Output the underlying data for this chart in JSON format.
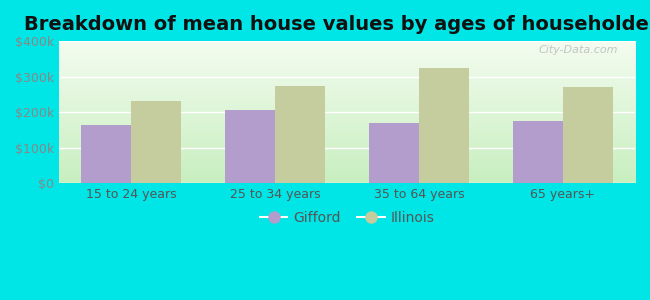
{
  "title": "Breakdown of mean house values by ages of householders",
  "categories": [
    "15 to 24 years",
    "25 to 34 years",
    "35 to 64 years",
    "65 years+"
  ],
  "gifford_values": [
    165000,
    205000,
    170000,
    175000
  ],
  "illinois_values": [
    230000,
    273000,
    325000,
    272000
  ],
  "gifford_color": "#b39dcc",
  "illinois_color": "#c5cc9d",
  "background_color": "#00e5e5",
  "ylim": [
    0,
    400000
  ],
  "yticks": [
    0,
    100000,
    200000,
    300000,
    400000
  ],
  "bar_width": 0.35,
  "legend_gifford": "Gifford",
  "legend_illinois": "Illinois",
  "title_fontsize": 14,
  "tick_fontsize": 9,
  "legend_fontsize": 10,
  "ytick_color": "#888888",
  "xtick_color": "#555555",
  "grid_color": "#d0e8d0",
  "watermark_color": "#bbbbbb",
  "grad_bottom": "#c8efc0",
  "grad_top": "#f4fcf0"
}
